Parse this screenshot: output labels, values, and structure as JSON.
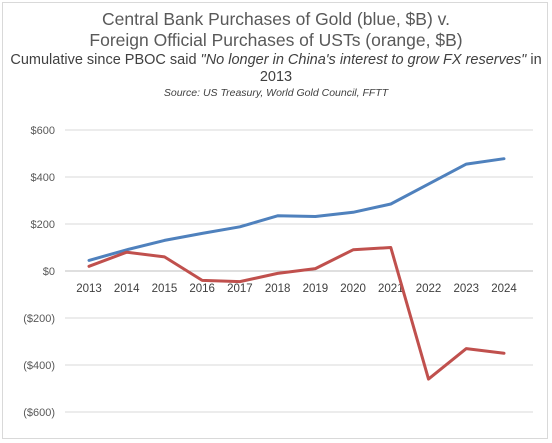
{
  "chart_data": {
    "type": "line",
    "title_line1": "Central Bank Purchases of Gold (blue, $B) v.",
    "title_line2": "Foreign Official Purchases of USTs (orange, $B)",
    "subtitle_prefix": "Cumulative since PBOC said ",
    "subtitle_quote": "\"No longer in China's interest to grow FX reserves\"",
    "subtitle_suffix": " in 2013",
    "source": "Source: US Treasury, World Gold Council, FFTT",
    "x": [
      "2013",
      "2014",
      "2015",
      "2016",
      "2017",
      "2018",
      "2019",
      "2020",
      "2021",
      "2022",
      "2023",
      "2024"
    ],
    "yticks": [
      {
        "value": 600,
        "label": "$600"
      },
      {
        "value": 400,
        "label": "$400"
      },
      {
        "value": 200,
        "label": "$200"
      },
      {
        "value": 0,
        "label": "$0"
      },
      {
        "value": -200,
        "label": "($200)"
      },
      {
        "value": -400,
        "label": "($400)"
      },
      {
        "value": -600,
        "label": "($600)"
      }
    ],
    "ylim": [
      -600,
      600
    ],
    "grid": true,
    "series": [
      {
        "color": "#4f81bd",
        "values": [
          45,
          90,
          130,
          160,
          188,
          235,
          232,
          250,
          285,
          370,
          455,
          478
        ]
      },
      {
        "color": "#c0504d",
        "values": [
          20,
          80,
          60,
          -40,
          -45,
          -10,
          10,
          90,
          100,
          -460,
          -330,
          -350
        ]
      }
    ]
  }
}
